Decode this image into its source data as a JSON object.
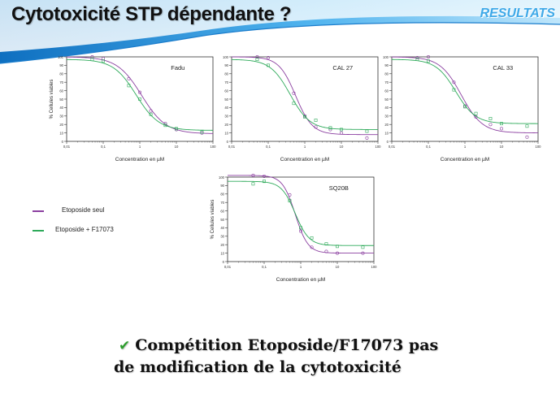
{
  "header": {
    "title": "Cytotoxicité STP dépendante ?",
    "section": "RESULTATS"
  },
  "colors": {
    "etoposide_seul": "#8b3fa0",
    "etoposide_f17073": "#2eaa5a",
    "banner": "#1f8fd6"
  },
  "legend": [
    {
      "label": "Etoposide seul",
      "color": "#8b3fa0"
    },
    {
      "label": "Etoposide + F17073",
      "color": "#2eaa5a"
    }
  ],
  "chart_data": [
    {
      "type": "scatter",
      "title": "Fadu",
      "xlabel": "Concentration en µM",
      "ylabel": "% Cellules viables",
      "xscale": "log",
      "xlim": [
        0.01,
        100
      ],
      "ylim": [
        0,
        100
      ],
      "xticks": [
        "0,01",
        "0,1",
        "1",
        "10",
        "100"
      ],
      "yticks": [
        0,
        10,
        20,
        30,
        40,
        50,
        60,
        70,
        80,
        90,
        100
      ],
      "series": [
        {
          "name": "Etoposide seul",
          "points": [
            [
              0.05,
              100
            ],
            [
              0.1,
              98
            ],
            [
              0.5,
              74
            ],
            [
              1,
              58
            ],
            [
              2,
              36
            ],
            [
              5,
              21
            ],
            [
              10,
              14
            ],
            [
              50,
              10
            ]
          ]
        },
        {
          "name": "Etoposide + F17073",
          "points": [
            [
              0.05,
              97
            ],
            [
              0.1,
              95
            ],
            [
              0.5,
              66
            ],
            [
              1,
              50
            ],
            [
              2,
              32
            ],
            [
              5,
              19
            ],
            [
              10,
              15
            ],
            [
              50,
              11
            ]
          ]
        }
      ]
    },
    {
      "type": "scatter",
      "title": "CAL 27",
      "xlabel": "Concentration en µM",
      "ylabel": "",
      "xscale": "log",
      "xlim": [
        0.01,
        100
      ],
      "ylim": [
        0,
        100
      ],
      "xticks": [
        "0,01",
        "0,1",
        "1",
        "10",
        "100"
      ],
      "yticks": [
        0,
        10,
        20,
        30,
        40,
        50,
        60,
        70,
        80,
        90,
        100
      ],
      "series": [
        {
          "name": "Etoposide seul",
          "points": [
            [
              0.05,
              100
            ],
            [
              0.1,
              99
            ],
            [
              0.5,
              57
            ],
            [
              1,
              30
            ],
            [
              2,
              17
            ],
            [
              5,
              14
            ],
            [
              10,
              10
            ],
            [
              50,
              4
            ]
          ]
        },
        {
          "name": "Etoposide + F17073",
          "points": [
            [
              0.05,
              97
            ],
            [
              0.1,
              90
            ],
            [
              0.5,
              45
            ],
            [
              1,
              29
            ],
            [
              2,
              25
            ],
            [
              5,
              16
            ],
            [
              10,
              14
            ],
            [
              50,
              12
            ]
          ]
        }
      ]
    },
    {
      "type": "scatter",
      "title": "CAL 33",
      "xlabel": "Concentration en µM",
      "ylabel": "",
      "xscale": "log",
      "xlim": [
        0.01,
        100
      ],
      "ylim": [
        0,
        100
      ],
      "xticks": [
        "0,01",
        "0,1",
        "1",
        "10",
        "100"
      ],
      "yticks": [
        0,
        10,
        20,
        30,
        40,
        50,
        60,
        70,
        80,
        90,
        100
      ],
      "series": [
        {
          "name": "Etoposide seul",
          "points": [
            [
              0.05,
              99
            ],
            [
              0.1,
              100
            ],
            [
              0.5,
              70
            ],
            [
              1,
              42
            ],
            [
              2,
              29
            ],
            [
              5,
              20
            ],
            [
              10,
              15
            ],
            [
              50,
              5
            ]
          ]
        },
        {
          "name": "Etoposide + F17073",
          "points": [
            [
              0.05,
              97
            ],
            [
              0.1,
              95
            ],
            [
              0.5,
              61
            ],
            [
              1,
              41
            ],
            [
              2,
              33
            ],
            [
              5,
              27
            ],
            [
              10,
              21
            ],
            [
              50,
              18
            ]
          ]
        }
      ]
    },
    {
      "type": "scatter",
      "title": "SQ20B",
      "xlabel": "Concentration en µM",
      "ylabel": "% Cellules viables",
      "xscale": "log",
      "xlim": [
        0.01,
        100
      ],
      "ylim": [
        0,
        100
      ],
      "xticks": [
        "0,01",
        "0,1",
        "1",
        "10",
        "100"
      ],
      "yticks": [
        0,
        10,
        20,
        30,
        40,
        50,
        60,
        70,
        80,
        90,
        100
      ],
      "series": [
        {
          "name": "Etoposide seul",
          "points": [
            [
              0.05,
              102
            ],
            [
              0.1,
              101
            ],
            [
              0.5,
              79
            ],
            [
              1,
              36
            ],
            [
              2,
              17
            ],
            [
              5,
              12
            ],
            [
              10,
              10
            ],
            [
              50,
              10
            ]
          ]
        },
        {
          "name": "Etoposide + F17073",
          "points": [
            [
              0.05,
              92
            ],
            [
              0.1,
              95
            ],
            [
              0.5,
              72
            ],
            [
              1,
              40
            ],
            [
              2,
              28
            ],
            [
              5,
              21
            ],
            [
              10,
              18
            ],
            [
              50,
              17
            ]
          ]
        }
      ]
    }
  ],
  "conclusion": {
    "check_icon": "checkmark-icon",
    "line1": "Compétition Etoposide/F17073  pas",
    "line2": "de   modification de la cytotoxicité"
  }
}
